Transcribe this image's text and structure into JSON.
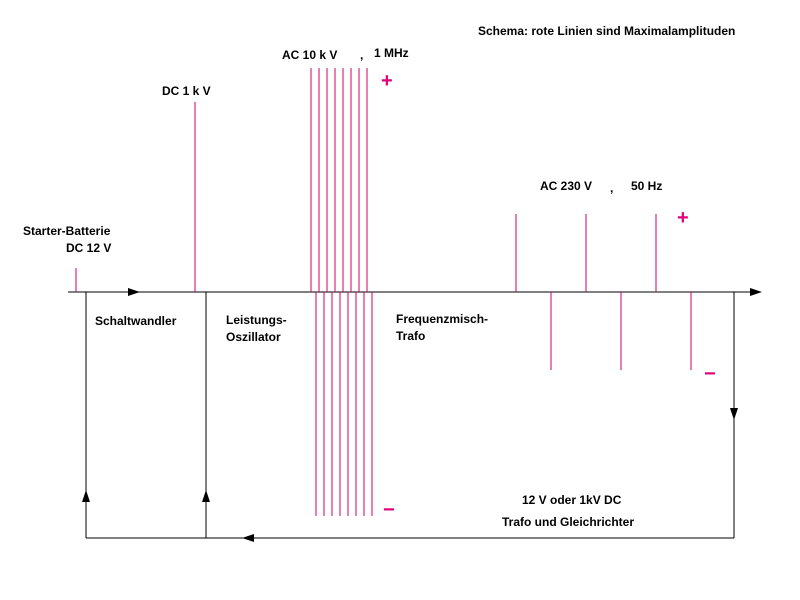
{
  "title": "Schema: rote Linien sind Maximalamplituden",
  "colors": {
    "amplitude_line": "#cc0066",
    "sign": "#e0007a",
    "axis": "#000000",
    "background": "#ffffff"
  },
  "labels": {
    "battery_line1": "Starter-Batterie",
    "battery_line2": "DC  12 V",
    "dc_1kv": "DC  1 k V",
    "ac_10kv": "AC  10 k V",
    "comma_1": ",",
    "mhz": "1 MHz",
    "ac_230v": "AC 230 V",
    "comma_2": ",",
    "hz": "50 Hz",
    "stage_1": "Schaltwandler",
    "stage_2_line1": "Leistungs-",
    "stage_2_line2": "Oszillator",
    "stage_3_line1": "Frequenzmisch-",
    "stage_3_line2": "Trafo",
    "feedback_line1": "12 V oder 1kV   DC",
    "feedback_line2": "Trafo und Gleichrichter"
  },
  "signs": {
    "plus": "+",
    "minus": "−"
  }
}
